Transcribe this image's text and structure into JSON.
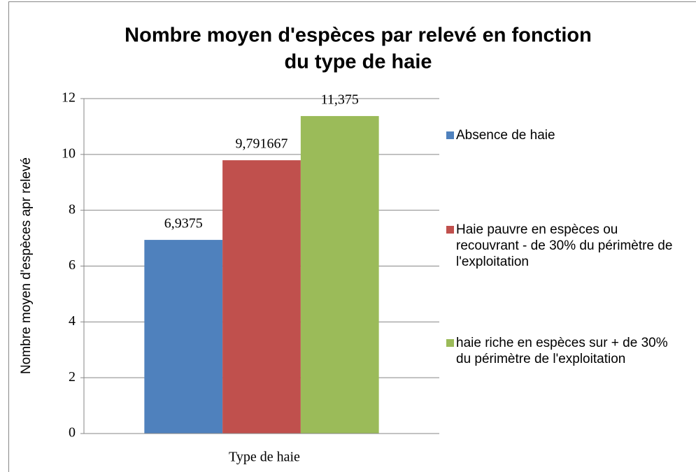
{
  "chart_data": {
    "type": "bar",
    "title": [
      "Nombre moyen d'espèces par relevé en fonction",
      "du type de haie"
    ],
    "xlabel": "Type de haie",
    "ylabel": "Nombre moyen d'espèces apr relevé",
    "categories": [
      "Type de haie"
    ],
    "series": [
      {
        "name": "Absence de haie",
        "color": "#4f81bd",
        "values": [
          6.9375
        ],
        "value_labels": [
          "6,9375"
        ]
      },
      {
        "name": "Haie pauvre en espèces ou recouvrant - de 30% du périmètre de l'exploitation",
        "color": "#c0504d",
        "values": [
          9.791667
        ],
        "value_labels": [
          "9,791667"
        ]
      },
      {
        "name": "haie riche en espèces sur + de 30% du périmètre de l'exploitation",
        "color": "#9bbb59",
        "values": [
          11.375
        ],
        "value_labels": [
          "11,375"
        ]
      }
    ],
    "ylim": [
      0,
      12
    ],
    "yticks": [
      0,
      2,
      4,
      6,
      8,
      10,
      12
    ],
    "grid": true,
    "legend": "right"
  }
}
